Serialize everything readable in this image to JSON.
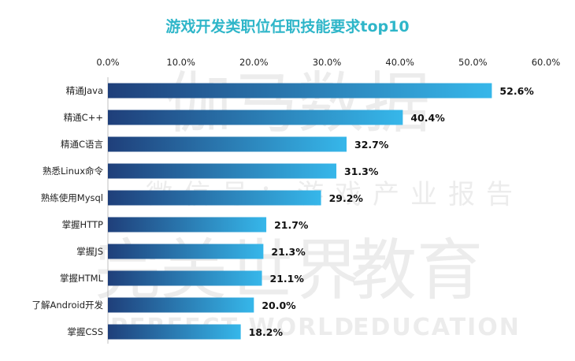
{
  "chart_data": {
    "type": "bar",
    "orientation": "horizontal",
    "title": "游戏开发类职位任职技能要求top10",
    "categories": [
      "精通Java",
      "精通C++",
      "精通C语言",
      "熟悉Linux命令",
      "熟练使用Mysql",
      "掌握HTTP",
      "掌握JS",
      "掌握HTML",
      "了解Android开发",
      "掌握CSS"
    ],
    "values": [
      52.6,
      40.4,
      32.7,
      31.3,
      29.2,
      21.7,
      21.3,
      21.1,
      20.0,
      18.2
    ],
    "value_labels": [
      "52.6%",
      "40.4%",
      "32.7%",
      "31.3%",
      "29.2%",
      "21.7%",
      "21.3%",
      "21.1%",
      "20.0%",
      "18.2%"
    ],
    "xlim": [
      0,
      60
    ],
    "x_ticks": [
      0,
      10,
      20,
      30,
      40,
      50,
      60
    ],
    "x_tick_labels": [
      "0.0%",
      "10.0%",
      "20.0%",
      "30.0%",
      "40.0%",
      "50.0%",
      "60.0%"
    ],
    "axis_position": "top",
    "grid": false,
    "legend": "none",
    "colors": {
      "bar_start": "#1f3f7a",
      "bar_end": "#36b7ea",
      "title": "#2fb6c9"
    }
  },
  "watermark": {
    "line1": "伽马数据",
    "line2": "微信号：游戏产业报告",
    "line3": "完美世界",
    "line4": "教育",
    "line5": "PERFECT WORLD",
    "line6": "EDUCATION"
  }
}
